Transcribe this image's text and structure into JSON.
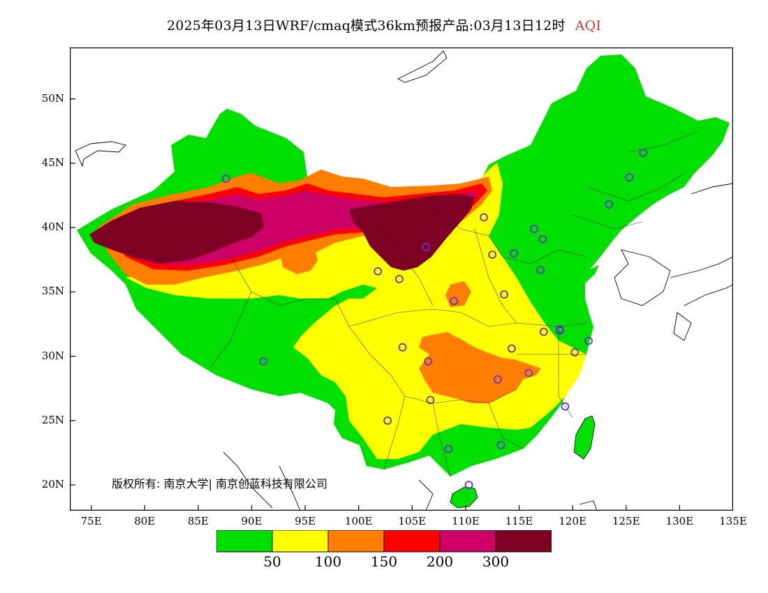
{
  "title": {
    "main": "2025年03月13日WRF/cmaq模式36km预报产品:03月13日12时",
    "variable": "AQI",
    "variable_color": "#e03030"
  },
  "axes": {
    "lat_ticks": [
      "50N",
      "45N",
      "40N",
      "35N",
      "30N",
      "25N",
      "20N"
    ],
    "lon_ticks": [
      "75E",
      "80E",
      "85E",
      "90E",
      "95E",
      "100E",
      "105E",
      "110E",
      "115E",
      "120E",
      "125E",
      "130E",
      "135E"
    ],
    "lat_range": [
      18,
      54
    ],
    "lon_range": [
      73,
      135
    ]
  },
  "copyright": "版权所有: 南京大学| 南京创蓝科技有限公司",
  "legend": {
    "colors": [
      "#00e000",
      "#ffff00",
      "#ff7e00",
      "#ff0000",
      "#cc0066",
      "#7e0023"
    ],
    "labels": [
      "50",
      "100",
      "150",
      "200",
      "300"
    ]
  },
  "stations": [
    {
      "lon": 87.6,
      "lat": 43.8
    },
    {
      "lon": 91.1,
      "lat": 29.6
    },
    {
      "lon": 101.8,
      "lat": 36.6
    },
    {
      "lon": 103.8,
      "lat": 36.0
    },
    {
      "lon": 106.3,
      "lat": 38.5
    },
    {
      "lon": 111.7,
      "lat": 40.8
    },
    {
      "lon": 108.9,
      "lat": 34.3
    },
    {
      "lon": 112.5,
      "lat": 37.9
    },
    {
      "lon": 114.5,
      "lat": 38.0
    },
    {
      "lon": 116.4,
      "lat": 39.9
    },
    {
      "lon": 117.2,
      "lat": 39.1
    },
    {
      "lon": 117.0,
      "lat": 36.7
    },
    {
      "lon": 113.6,
      "lat": 34.8
    },
    {
      "lon": 104.1,
      "lat": 30.7
    },
    {
      "lon": 106.5,
      "lat": 29.6
    },
    {
      "lon": 114.3,
      "lat": 30.6
    },
    {
      "lon": 117.3,
      "lat": 31.9
    },
    {
      "lon": 118.8,
      "lat": 32.1
    },
    {
      "lon": 121.5,
      "lat": 31.2
    },
    {
      "lon": 120.2,
      "lat": 30.3
    },
    {
      "lon": 115.9,
      "lat": 28.7
    },
    {
      "lon": 113.0,
      "lat": 28.2
    },
    {
      "lon": 106.7,
      "lat": 26.6
    },
    {
      "lon": 102.7,
      "lat": 25.0
    },
    {
      "lon": 119.3,
      "lat": 26.1
    },
    {
      "lon": 113.3,
      "lat": 23.1
    },
    {
      "lon": 108.4,
      "lat": 22.8
    },
    {
      "lon": 110.3,
      "lat": 20.0
    },
    {
      "lon": 123.4,
      "lat": 41.8
    },
    {
      "lon": 125.3,
      "lat": 43.9
    },
    {
      "lon": 126.6,
      "lat": 45.8
    },
    {
      "lon": 118.8,
      "lat": 32.0
    }
  ]
}
